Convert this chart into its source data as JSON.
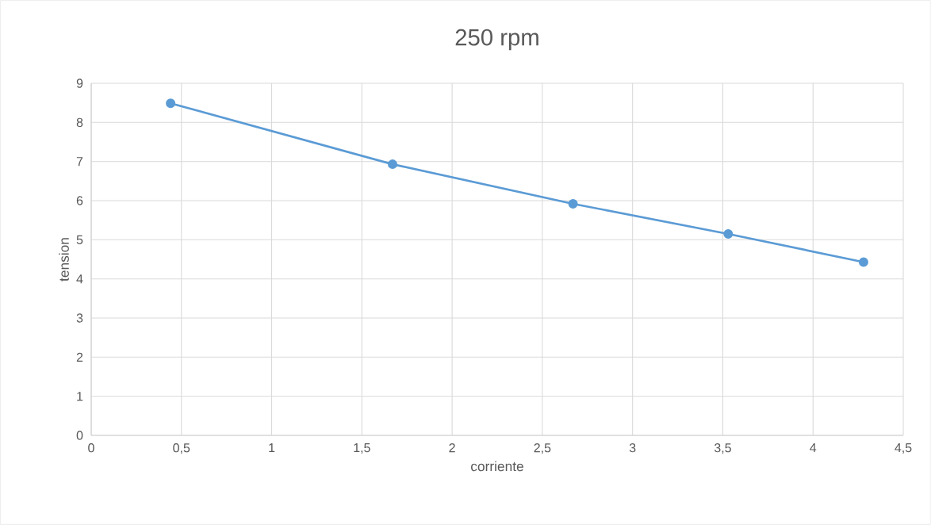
{
  "chart_data": {
    "type": "line",
    "title": "250 rpm",
    "xlabel": "corriente",
    "ylabel": "tension",
    "x": [
      0.44,
      1.67,
      2.67,
      3.53,
      4.28
    ],
    "series": [
      {
        "color": "#5b9bd5",
        "values": [
          8.49,
          6.93,
          5.92,
          5.15,
          4.43
        ]
      }
    ],
    "xlim": [
      0,
      4.5
    ],
    "xticks": [
      0,
      {
        "value": 0.5,
        "label": "0,5"
      },
      1,
      {
        "value": 1.5,
        "label": "1,5"
      },
      2,
      {
        "value": 2.5,
        "label": "2,5"
      },
      3,
      {
        "value": 3.5,
        "label": "3,5"
      },
      4,
      {
        "value": 4.5,
        "label": "4,5"
      }
    ],
    "ylim": [
      0,
      9
    ],
    "yticks": [
      0,
      1,
      2,
      3,
      4,
      5,
      6,
      7,
      8,
      9
    ],
    "grid": true,
    "marker": "circle",
    "line_style": "solid"
  }
}
